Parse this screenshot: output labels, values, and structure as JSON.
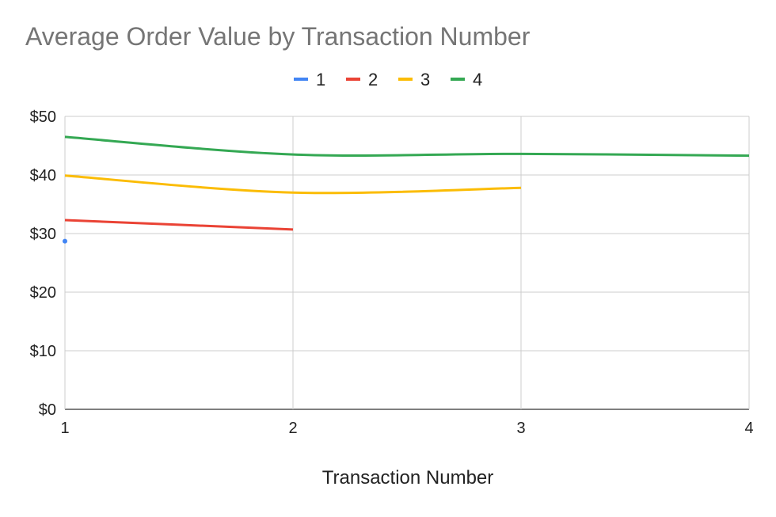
{
  "chart_data": {
    "type": "line",
    "title": "Average Order Value by Transaction Number",
    "xlabel": "Transaction Number",
    "ylabel": "",
    "x": [
      1,
      2,
      3,
      4
    ],
    "xlim": [
      1,
      4
    ],
    "ylim": [
      0,
      50
    ],
    "y_ticks": [
      0,
      10,
      20,
      30,
      40,
      50
    ],
    "y_tick_labels": [
      "$0",
      "$10",
      "$20",
      "$30",
      "$40",
      "$50"
    ],
    "x_tick_labels": [
      "1",
      "2",
      "3",
      "4"
    ],
    "grid": true,
    "legend_position": "top",
    "series": [
      {
        "name": "1",
        "color": "#4285f4",
        "values": [
          28.7,
          null,
          null,
          null
        ]
      },
      {
        "name": "2",
        "color": "#ea4335",
        "values": [
          32.3,
          30.7,
          null,
          null
        ]
      },
      {
        "name": "3",
        "color": "#fbbc04",
        "values": [
          39.9,
          37.0,
          37.8,
          null
        ]
      },
      {
        "name": "4",
        "color": "#34a853",
        "values": [
          46.5,
          43.5,
          43.6,
          43.3
        ]
      }
    ]
  }
}
